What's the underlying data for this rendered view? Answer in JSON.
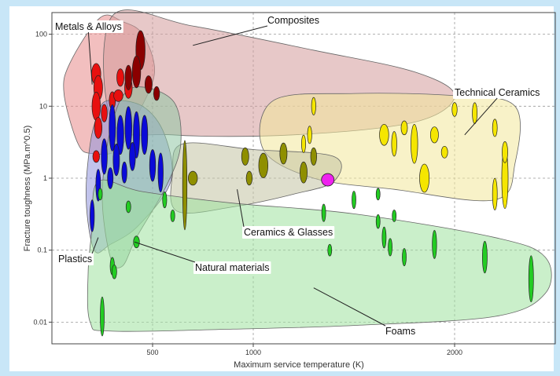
{
  "chart_data": {
    "type": "scatter",
    "subtype": "material-property-chart (Ashby bubble chart)",
    "xlabel": "Maximum service temperature (K)",
    "ylabel": "Fracture toughness (MPa.m^0.5)",
    "x_scale": "linear",
    "y_scale": "log",
    "xlim": [
      0,
      2500
    ],
    "ylim": [
      0.005,
      200
    ],
    "x_ticks": [
      {
        "value": 500,
        "label": "500"
      },
      {
        "value": 1000,
        "label": "1000"
      },
      {
        "value": 2000,
        "label": "2000"
      }
    ],
    "y_ticks": [
      {
        "value": 100,
        "label": "100"
      },
      {
        "value": 10,
        "label": "10"
      },
      {
        "value": 1,
        "label": "1"
      },
      {
        "value": 0.1,
        "label": "0.1"
      },
      {
        "value": 0.01,
        "label": "0.01"
      }
    ],
    "grid": true,
    "families": [
      {
        "name": "Metals & Alloys",
        "color": "#e8100f",
        "envelope_color": "#e88a8a",
        "envelope": [
          [
            350,
            150
          ],
          [
            240,
            170
          ],
          [
            90,
            40
          ],
          [
            60,
            15
          ],
          [
            130,
            3
          ],
          [
            200,
            2.2
          ],
          [
            330,
            2.5
          ],
          [
            430,
            8
          ],
          [
            510,
            30
          ],
          [
            450,
            100
          ]
        ],
        "bubbles": [
          [
            220,
            28,
            30,
            0.25
          ],
          [
            230,
            18,
            28,
            0.3
          ],
          [
            220,
            10,
            26,
            0.35
          ],
          [
            230,
            5,
            22,
            0.25
          ],
          [
            220,
            2,
            18,
            0.12
          ],
          [
            340,
            25,
            20,
            0.2
          ],
          [
            380,
            18,
            22,
            0.25
          ],
          [
            300,
            12,
            15,
            0.2
          ],
          [
            330,
            14,
            30,
            0.12
          ],
          [
            260,
            8,
            14,
            0.2
          ]
        ]
      },
      {
        "name": "Composites",
        "color": "#8b0000",
        "envelope_color": "#d49a9a",
        "envelope": [
          [
            300,
            180
          ],
          [
            700,
            130
          ],
          [
            1300,
            60
          ],
          [
            1800,
            30
          ],
          [
            2000,
            14
          ],
          [
            1800,
            6
          ],
          [
            1200,
            4
          ],
          [
            600,
            4
          ],
          [
            300,
            6
          ]
        ],
        "bubbles": [
          [
            440,
            60,
            30,
            0.5
          ],
          [
            420,
            30,
            26,
            0.4
          ],
          [
            380,
            25,
            18,
            0.3
          ],
          [
            480,
            20,
            20,
            0.2
          ],
          [
            520,
            15,
            14,
            0.15
          ]
        ]
      },
      {
        "name": "Technical Ceramics",
        "color": "#f5e600",
        "envelope_color": "#f3e79a",
        "envelope": [
          [
            1100,
            12
          ],
          [
            1500,
            15
          ],
          [
            2000,
            14
          ],
          [
            2300,
            10
          ],
          [
            2300,
            1.6
          ],
          [
            2200,
            0.5
          ],
          [
            1700,
            0.7
          ],
          [
            1300,
            1.0
          ],
          [
            1050,
            2.5
          ]
        ],
        "bubbles": [
          [
            1800,
            3,
            18,
            0.5
          ],
          [
            1850,
            1,
            32,
            0.35
          ],
          [
            2250,
            1,
            16,
            0.8
          ],
          [
            1650,
            4,
            30,
            0.25
          ],
          [
            1750,
            5,
            16,
            0.15
          ],
          [
            1700,
            3,
            10,
            0.3
          ],
          [
            1900,
            4,
            24,
            0.18
          ],
          [
            1950,
            2.3,
            16,
            0.12
          ],
          [
            2200,
            5,
            8,
            0.2
          ],
          [
            2250,
            2.3,
            12,
            0.25
          ],
          [
            2200,
            0.6,
            8,
            0.4
          ],
          [
            2000,
            9,
            10,
            0.15
          ],
          [
            2100,
            8,
            8,
            0.25
          ],
          [
            1300,
            10,
            6,
            0.2
          ],
          [
            1280,
            4,
            6,
            0.2
          ],
          [
            1250,
            3,
            5,
            0.2
          ]
        ]
      },
      {
        "name": "Ceramics & Glasses",
        "color": "#8f8f00",
        "envelope_color": "#c3c3a2",
        "envelope": [
          [
            650,
            3.0
          ],
          [
            1000,
            2.5
          ],
          [
            1400,
            2.0
          ],
          [
            1400,
            0.9
          ],
          [
            1200,
            0.6
          ],
          [
            900,
            0.4
          ],
          [
            620,
            0.35
          ],
          [
            600,
            1.2
          ]
        ],
        "bubbles": [
          [
            700,
            1.0,
            30,
            0.15
          ],
          [
            660,
            0.8,
            6,
            1.2
          ],
          [
            960,
            2.0,
            20,
            0.2
          ],
          [
            1050,
            1.5,
            30,
            0.3
          ],
          [
            1150,
            2.2,
            20,
            0.25
          ],
          [
            1250,
            1.2,
            20,
            0.25
          ],
          [
            1300,
            2.0,
            14,
            0.2
          ],
          [
            980,
            1.0,
            14,
            0.15
          ]
        ]
      },
      {
        "name": "Plastics",
        "color": "#0a0ad8",
        "envelope_color": "#8f93dd",
        "envelope": [
          [
            280,
            12
          ],
          [
            450,
            10
          ],
          [
            560,
            4
          ],
          [
            590,
            0.9
          ],
          [
            430,
            0.22
          ],
          [
            290,
            0.12
          ],
          [
            210,
            0.1
          ],
          [
            170,
            0.5
          ],
          [
            190,
            3
          ],
          [
            230,
            8
          ]
        ],
        "bubbles": [
          [
            300,
            5,
            16,
            0.6
          ],
          [
            340,
            4,
            18,
            0.5
          ],
          [
            380,
            5,
            18,
            0.55
          ],
          [
            420,
            4,
            16,
            0.6
          ],
          [
            460,
            4,
            16,
            0.5
          ],
          [
            260,
            2,
            14,
            0.45
          ],
          [
            320,
            1.8,
            16,
            0.4
          ],
          [
            400,
            2,
            14,
            0.35
          ],
          [
            500,
            1.5,
            14,
            0.4
          ],
          [
            540,
            1.2,
            10,
            0.5
          ],
          [
            230,
            0.8,
            8,
            0.4
          ],
          [
            200,
            0.3,
            6,
            0.4
          ],
          [
            290,
            1.0,
            12,
            0.25
          ],
          [
            360,
            1.2,
            10,
            0.25
          ]
        ]
      },
      {
        "name": "Natural materials",
        "color": "#ffffff",
        "envelope_color": "#8fc6a4",
        "envelope": [
          [
            400,
            18
          ],
          [
            600,
            12
          ],
          [
            640,
            3
          ],
          [
            570,
            0.8
          ],
          [
            420,
            0.15
          ],
          [
            350,
            0.06
          ],
          [
            290,
            0.08
          ],
          [
            250,
            0.6
          ],
          [
            300,
            6
          ]
        ],
        "bubbles": []
      },
      {
        "name": "Foams",
        "color": "#22cc22",
        "envelope_color": "#9fe29f",
        "envelope": [
          [
            230,
            0.9
          ],
          [
            450,
            0.65
          ],
          [
            900,
            0.45
          ],
          [
            1500,
            0.32
          ],
          [
            2200,
            0.15
          ],
          [
            2450,
            0.08
          ],
          [
            2450,
            0.025
          ],
          [
            2200,
            0.012
          ],
          [
            1500,
            0.009
          ],
          [
            900,
            0.008
          ],
          [
            300,
            0.0075
          ],
          [
            190,
            0.01
          ],
          [
            180,
            0.05
          ],
          [
            200,
            0.2
          ]
        ],
        "bubbles": [
          [
            300,
            0.06,
            6,
            0.2
          ],
          [
            250,
            0.012,
            4,
            0.5
          ],
          [
            310,
            0.05,
            8,
            0.15
          ],
          [
            420,
            0.13,
            14,
            0.12
          ],
          [
            380,
            0.4,
            8,
            0.12
          ],
          [
            1900,
            0.12,
            6,
            0.35
          ],
          [
            2380,
            0.04,
            8,
            0.6
          ],
          [
            2150,
            0.08,
            8,
            0.4
          ],
          [
            1750,
            0.08,
            4,
            0.2
          ],
          [
            1650,
            0.15,
            4,
            0.25
          ],
          [
            1680,
            0.11,
            4,
            0.2
          ],
          [
            1620,
            0.25,
            4,
            0.15
          ],
          [
            1700,
            0.3,
            4,
            0.12
          ],
          [
            1380,
            0.1,
            4,
            0.12
          ],
          [
            1500,
            0.5,
            4,
            0.2
          ],
          [
            1350,
            0.33,
            4,
            0.2
          ],
          [
            1620,
            0.6,
            4,
            0.12
          ],
          [
            560,
            0.5,
            5,
            0.18
          ],
          [
            600,
            0.3,
            5,
            0.12
          ],
          [
            240,
            0.6,
            5,
            0.12
          ]
        ]
      }
    ],
    "annotations": [
      {
        "text": "Metals & Alloys",
        "anchor": "top-left",
        "arrow_to": [
          200,
          20
        ]
      },
      {
        "text": "Composites",
        "anchor": "top-center",
        "arrow_to": [
          700,
          70
        ]
      },
      {
        "text": "Technical Ceramics",
        "anchor": "right",
        "arrow_to": [
          2050,
          4
        ]
      },
      {
        "text": "Ceramics & Glasses",
        "anchor": "center",
        "arrow_to": [
          920,
          0.7
        ]
      },
      {
        "text": "Plastics",
        "anchor": "left",
        "arrow_to": [
          230,
          0.15
        ]
      },
      {
        "text": "Natural materials",
        "anchor": "center-left",
        "arrow_to": [
          410,
          0.13
        ]
      },
      {
        "text": "Foams",
        "anchor": "bottom-center",
        "arrow_to": [
          1300,
          0.03
        ]
      }
    ],
    "highlight_point": {
      "x": 1370,
      "y": 0.95,
      "color": "#ee22ee"
    }
  }
}
